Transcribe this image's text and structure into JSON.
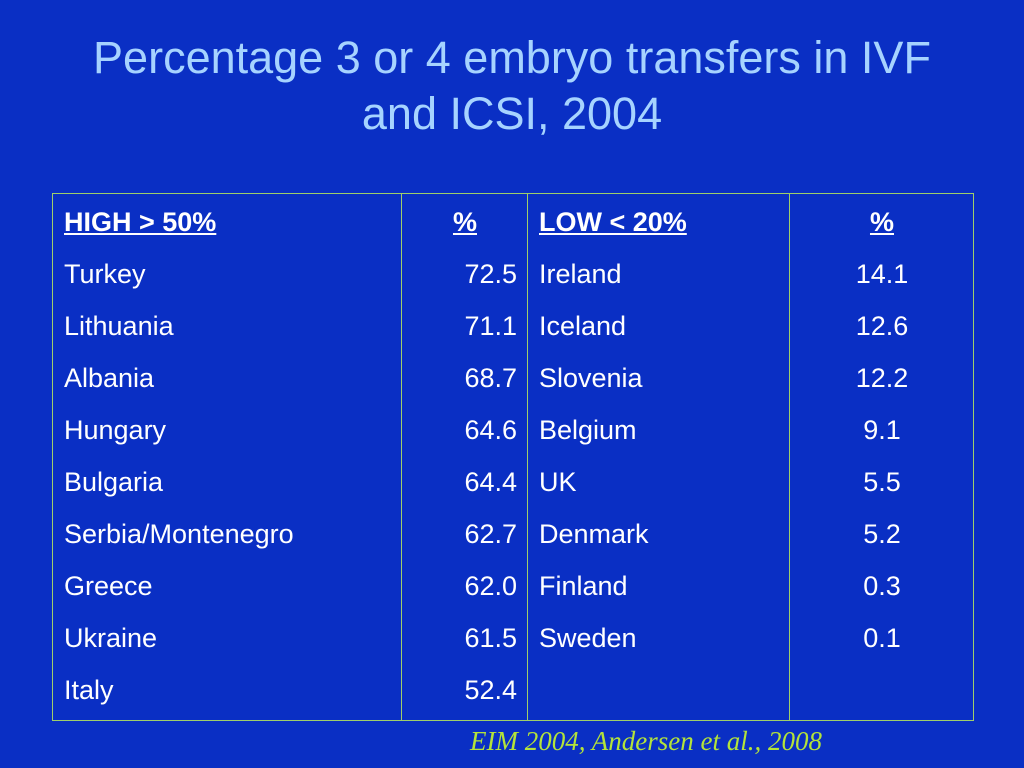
{
  "title": {
    "line1": "Percentage 3 or 4 embryo transfers in IVF",
    "line2": "and ICSI, 2004"
  },
  "table": {
    "high": {
      "header": "HIGH  > 50%",
      "value_header": "%",
      "rows": [
        {
          "country": "Turkey",
          "value": "72.5"
        },
        {
          "country": "Lithuania",
          "value": "71.1"
        },
        {
          "country": "Albania",
          "value": "68.7"
        },
        {
          "country": "Hungary",
          "value": "64.6"
        },
        {
          "country": "Bulgaria",
          "value": "64.4"
        },
        {
          "country": "Serbia/Montenegro",
          "value": "62.7"
        },
        {
          "country": "Greece",
          "value": "62.0"
        },
        {
          "country": "Ukraine",
          "value": "61.5"
        },
        {
          "country": "Italy",
          "value": "52.4"
        }
      ]
    },
    "low": {
      "header": "LOW  < 20%",
      "value_header": "%",
      "rows": [
        {
          "country": "Ireland",
          "value": "14.1"
        },
        {
          "country": "Iceland",
          "value": "12.6"
        },
        {
          "country": "Slovenia",
          "value": "12.2"
        },
        {
          "country": "Belgium",
          "value": "9.1"
        },
        {
          "country": "UK",
          "value": "5.5"
        },
        {
          "country": "Denmark",
          "value": "5.2"
        },
        {
          "country": "Finland",
          "value": "0.3"
        },
        {
          "country": "Sweden",
          "value": "0.1"
        }
      ]
    }
  },
  "source": "EIM 2004, Andersen et al., 2008",
  "colors": {
    "background": "#0a2fc4",
    "title": "#a6d3ff",
    "table_text": "#ffffff",
    "table_border": "#9fcf6a",
    "source": "#b4e33a"
  }
}
